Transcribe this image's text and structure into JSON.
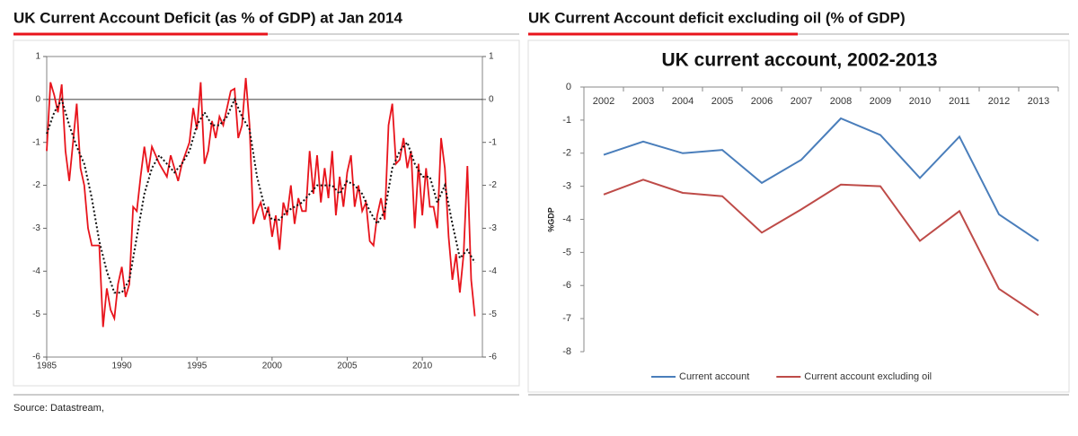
{
  "source": "Source: Datastream,",
  "chart_data": [
    {
      "type": "line",
      "title": "UK Current Account Deficit (as % of GDP) at Jan 2014",
      "xlim": [
        1985,
        2014
      ],
      "xticks": [
        1985,
        1990,
        1995,
        2000,
        2005,
        2010
      ],
      "ylim": [
        -6,
        1
      ],
      "yticks": [
        -6,
        -5,
        -4,
        -3,
        -2,
        -1,
        0,
        1
      ],
      "hlines": [
        0
      ],
      "right_axis": true,
      "series": [
        {
          "color": "#e8141c",
          "style": "solid",
          "x": [
            1985.0,
            1985.25,
            1985.5,
            1985.75,
            1986.0,
            1986.25,
            1986.5,
            1986.75,
            1987.0,
            1987.25,
            1987.5,
            1987.75,
            1988.0,
            1988.5,
            1988.75,
            1989.0,
            1989.25,
            1989.5,
            1989.75,
            1990.0,
            1990.25,
            1990.5,
            1990.75,
            1991.0,
            1991.25,
            1991.5,
            1991.75,
            1992.0,
            1992.5,
            1993.0,
            1993.25,
            1993.75,
            1994.0,
            1994.5,
            1994.75,
            1995.0,
            1995.25,
            1995.5,
            1995.75,
            1996.0,
            1996.25,
            1996.5,
            1996.75,
            1997.0,
            1997.25,
            1997.5,
            1997.75,
            1998.0,
            1998.25,
            1998.5,
            1998.75,
            1999.0,
            1999.25,
            1999.5,
            1999.75,
            2000.0,
            2000.25,
            2000.5,
            2000.75,
            2001.0,
            2001.25,
            2001.5,
            2001.75,
            2002.0,
            2002.25,
            2002.5,
            2002.75,
            2003.0,
            2003.25,
            2003.5,
            2003.75,
            2004.0,
            2004.25,
            2004.5,
            2004.75,
            2005.0,
            2005.25,
            2005.5,
            2005.75,
            2006.0,
            2006.25,
            2006.5,
            2006.75,
            2007.0,
            2007.25,
            2007.5,
            2007.75,
            2008.0,
            2008.25,
            2008.5,
            2008.75,
            2009.0,
            2009.25,
            2009.5,
            2009.75,
            2010.0,
            2010.25,
            2010.5,
            2010.75,
            2011.0,
            2011.25,
            2011.5,
            2011.75,
            2012.0,
            2012.25,
            2012.5,
            2012.75,
            2013.0,
            2013.25,
            2013.5
          ],
          "values": [
            -1.2,
            0.4,
            0.1,
            -0.3,
            0.35,
            -1.2,
            -1.9,
            -1.0,
            -0.1,
            -1.6,
            -2.0,
            -3.0,
            -3.4,
            -3.4,
            -5.3,
            -4.4,
            -4.9,
            -5.1,
            -4.3,
            -3.9,
            -4.6,
            -4.3,
            -2.5,
            -2.6,
            -1.8,
            -1.1,
            -1.7,
            -1.1,
            -1.5,
            -1.8,
            -1.3,
            -1.9,
            -1.5,
            -1.0,
            -0.2,
            -0.7,
            0.4,
            -1.5,
            -1.2,
            -0.5,
            -0.9,
            -0.4,
            -0.6,
            -0.2,
            0.2,
            0.25,
            -0.9,
            -0.6,
            0.5,
            -0.6,
            -2.9,
            -2.6,
            -2.4,
            -2.8,
            -2.5,
            -3.2,
            -2.7,
            -3.5,
            -2.4,
            -2.7,
            -2.0,
            -2.9,
            -2.3,
            -2.6,
            -2.6,
            -1.2,
            -2.2,
            -1.3,
            -2.4,
            -1.6,
            -2.3,
            -1.2,
            -2.7,
            -1.8,
            -2.5,
            -1.7,
            -1.3,
            -2.5,
            -2.0,
            -2.6,
            -2.4,
            -3.3,
            -3.4,
            -2.7,
            -2.3,
            -2.8,
            -0.6,
            -0.1,
            -1.5,
            -1.4,
            -0.9,
            -1.6,
            -1.2,
            -3.0,
            -1.5,
            -2.7,
            -1.6,
            -2.5,
            -2.5,
            -3.0,
            -0.9,
            -1.6,
            -3.2,
            -4.2,
            -3.6,
            -4.5,
            -3.6,
            -1.55,
            -4.2,
            -5.05
          ]
        },
        {
          "color": "#111111",
          "style": "dotted",
          "x": [
            1985,
            1985.5,
            1986,
            1986.5,
            1987,
            1987.5,
            1988,
            1988.5,
            1989,
            1989.5,
            1990,
            1990.5,
            1991,
            1991.5,
            1992,
            1992.5,
            1993,
            1993.5,
            1994,
            1994.5,
            1995,
            1995.5,
            1996,
            1996.5,
            1997,
            1997.5,
            1998,
            1998.5,
            1999,
            1999.5,
            2000,
            2000.5,
            2001,
            2001.5,
            2002,
            2002.5,
            2003,
            2003.5,
            2004,
            2004.5,
            2005,
            2005.5,
            2006,
            2006.5,
            2007,
            2007.5,
            2008,
            2008.5,
            2009,
            2009.5,
            2010,
            2010.5,
            2011,
            2011.5,
            2012,
            2012.5,
            2013,
            2013.5
          ],
          "values": [
            -0.8,
            -0.3,
            0.0,
            -0.6,
            -1.1,
            -1.5,
            -2.3,
            -3.3,
            -4.0,
            -4.5,
            -4.5,
            -4.2,
            -3.2,
            -2.2,
            -1.6,
            -1.3,
            -1.5,
            -1.7,
            -1.5,
            -1.2,
            -0.6,
            -0.3,
            -0.6,
            -0.6,
            -0.4,
            0.0,
            -0.4,
            -0.7,
            -1.8,
            -2.5,
            -2.8,
            -2.8,
            -2.6,
            -2.5,
            -2.4,
            -2.2,
            -2.0,
            -2.0,
            -2.0,
            -2.2,
            -1.9,
            -2.0,
            -2.2,
            -2.6,
            -2.9,
            -2.6,
            -1.6,
            -1.2,
            -1.0,
            -1.5,
            -1.8,
            -1.8,
            -2.4,
            -2.0,
            -2.9,
            -3.7,
            -3.5,
            -3.8
          ]
        }
      ]
    },
    {
      "type": "line",
      "title": "UK Current Account deficit excluding oil (% of GDP)",
      "inner_title": "UK current account, 2002-2013",
      "y_label": "%GDP",
      "categories": [
        "2002",
        "2003",
        "2004",
        "2005",
        "2006",
        "2007",
        "2008",
        "2009",
        "2010",
        "2011",
        "2012",
        "2013"
      ],
      "ylim": [
        -8,
        0
      ],
      "yticks": [
        -8,
        -7,
        -6,
        -5,
        -4,
        -3,
        -2,
        -1,
        0
      ],
      "legend": "bottom",
      "series": [
        {
          "name": "Current account",
          "color": "#4a7ebb",
          "style": "solid",
          "values": [
            -2.05,
            -1.65,
            -2.0,
            -1.9,
            -2.9,
            -2.2,
            -0.95,
            -1.45,
            -2.75,
            -1.5,
            -3.85,
            -4.65
          ]
        },
        {
          "name": "Current account excluding oil",
          "color": "#be4b48",
          "style": "solid",
          "values": [
            -3.25,
            -2.8,
            -3.2,
            -3.3,
            -4.4,
            -3.7,
            -2.95,
            -3.0,
            -4.65,
            -3.75,
            -6.1,
            -6.9
          ]
        }
      ]
    }
  ]
}
